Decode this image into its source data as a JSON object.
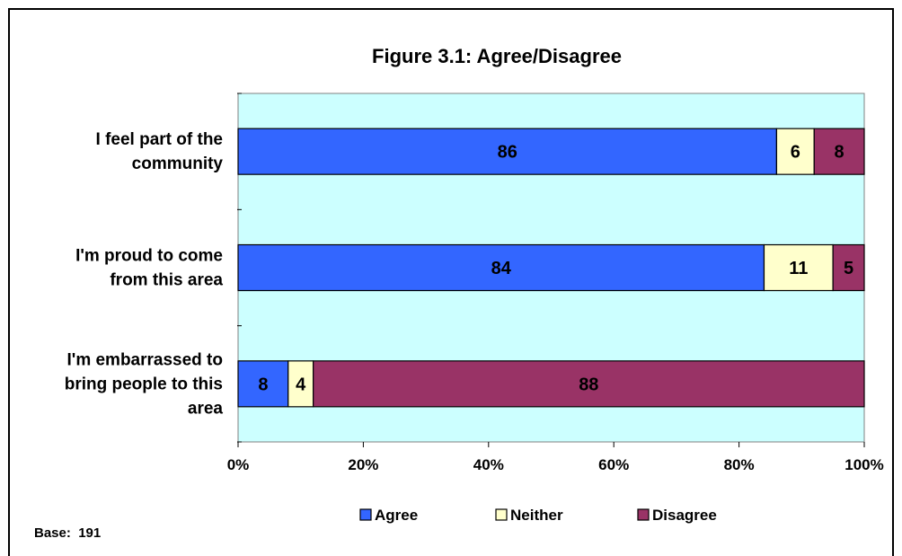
{
  "chart_data": {
    "type": "bar",
    "orientation": "horizontal",
    "stacked": true,
    "percent_stacked": true,
    "title": "Figure 3.1: Agree/Disagree",
    "categories": [
      "I feel part of the community",
      "I'm proud to come from this area",
      "I'm embarrassed to bring people to this area"
    ],
    "category_label_lines": [
      [
        "I feel part of the",
        "community"
      ],
      [
        "I'm proud to come",
        "from this area"
      ],
      [
        "I'm embarrassed to",
        "bring people to this",
        "area"
      ]
    ],
    "series": [
      {
        "name": "Agree",
        "values": [
          86,
          84,
          8
        ],
        "color": "#3366FF"
      },
      {
        "name": "Neither",
        "values": [
          6,
          11,
          4
        ],
        "color": "#FFFFCC"
      },
      {
        "name": "Disagree",
        "values": [
          8,
          5,
          88
        ],
        "color": "#993366"
      }
    ],
    "xlim": [
      0,
      100
    ],
    "xticks": [
      "0%",
      "20%",
      "40%",
      "60%",
      "80%",
      "100%"
    ],
    "plot_background": "#CCFFFF",
    "legend_position": "bottom",
    "grid": false,
    "footnote": "Base:  191"
  }
}
